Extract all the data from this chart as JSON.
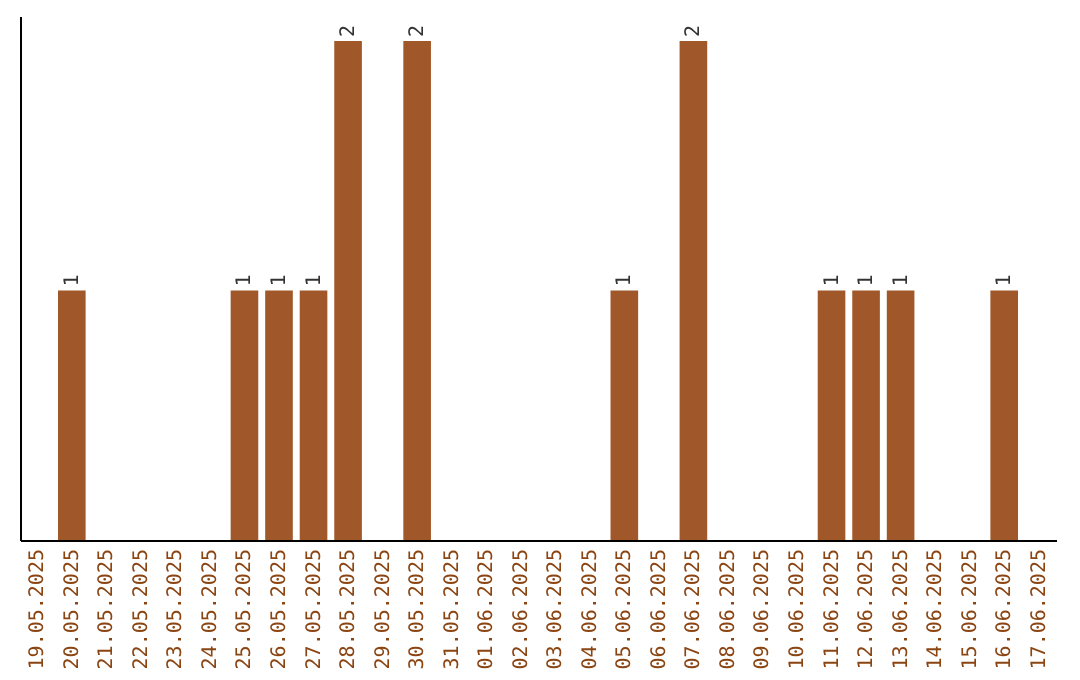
{
  "chart_data": {
    "type": "bar",
    "categories": [
      "19.05.2025",
      "20.05.2025",
      "21.05.2025",
      "22.05.2025",
      "23.05.2025",
      "24.05.2025",
      "25.05.2025",
      "26.05.2025",
      "27.05.2025",
      "28.05.2025",
      "29.05.2025",
      "30.05.2025",
      "31.05.2025",
      "01.06.2025",
      "02.06.2025",
      "03.06.2025",
      "04.06.2025",
      "05.06.2025",
      "06.06.2025",
      "07.06.2025",
      "08.06.2025",
      "09.06.2025",
      "10.06.2025",
      "11.06.2025",
      "12.06.2025",
      "13.06.2025",
      "14.06.2025",
      "15.06.2025",
      "16.06.2025",
      "17.06.2025"
    ],
    "values": [
      0,
      1,
      0,
      0,
      0,
      0,
      1,
      1,
      1,
      2,
      0,
      2,
      0,
      0,
      0,
      0,
      0,
      1,
      0,
      2,
      0,
      0,
      0,
      1,
      1,
      1,
      0,
      0,
      1,
      0
    ],
    "value_labels": [
      null,
      "1",
      null,
      null,
      null,
      null,
      "1",
      "1",
      "1",
      "2",
      null,
      "2",
      null,
      null,
      null,
      null,
      null,
      "1",
      null,
      "2",
      null,
      null,
      null,
      "1",
      "1",
      "1",
      null,
      null,
      "1",
      null
    ],
    "color": "#a0582a",
    "ylim": [
      0,
      2.1
    ],
    "tick_labels": "x"
  }
}
